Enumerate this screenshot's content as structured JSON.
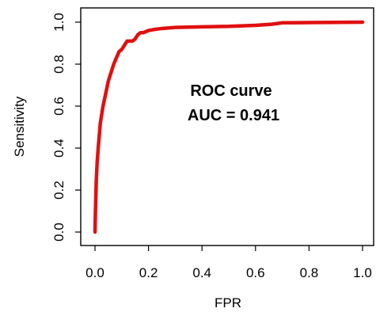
{
  "chart_data": {
    "type": "line",
    "title": "",
    "xlabel": "FPR",
    "ylabel": "Sensitivity",
    "xlim": [
      0,
      1
    ],
    "ylim": [
      0,
      1
    ],
    "xticks": [
      "0.0",
      "0.2",
      "0.4",
      "0.6",
      "0.8",
      "1.0"
    ],
    "yticks": [
      "0.0",
      "0.2",
      "0.4",
      "0.6",
      "0.8",
      "1.0"
    ],
    "grid": false,
    "legend": "none",
    "annotations": [
      "ROC curve",
      "AUC = 0.941"
    ],
    "series": [
      {
        "color": "#e01010",
        "x": [
          0,
          0.002,
          0.005,
          0.008,
          0.012,
          0.016,
          0.02,
          0.025,
          0.03,
          0.04,
          0.05,
          0.06,
          0.07,
          0.08,
          0.09,
          0.1,
          0.11,
          0.12,
          0.13,
          0.14,
          0.15,
          0.16,
          0.17,
          0.18,
          0.2,
          0.22,
          0.25,
          0.3,
          0.4,
          0.5,
          0.6,
          0.66,
          0.7,
          0.8,
          0.9,
          1.0
        ],
        "y": [
          0,
          0.12,
          0.25,
          0.33,
          0.4,
          0.46,
          0.52,
          0.56,
          0.6,
          0.66,
          0.72,
          0.76,
          0.8,
          0.83,
          0.86,
          0.87,
          0.89,
          0.91,
          0.91,
          0.91,
          0.92,
          0.94,
          0.95,
          0.95,
          0.96,
          0.965,
          0.97,
          0.975,
          0.978,
          0.98,
          0.985,
          0.99,
          0.997,
          0.998,
          0.999,
          1.0
        ]
      }
    ]
  }
}
